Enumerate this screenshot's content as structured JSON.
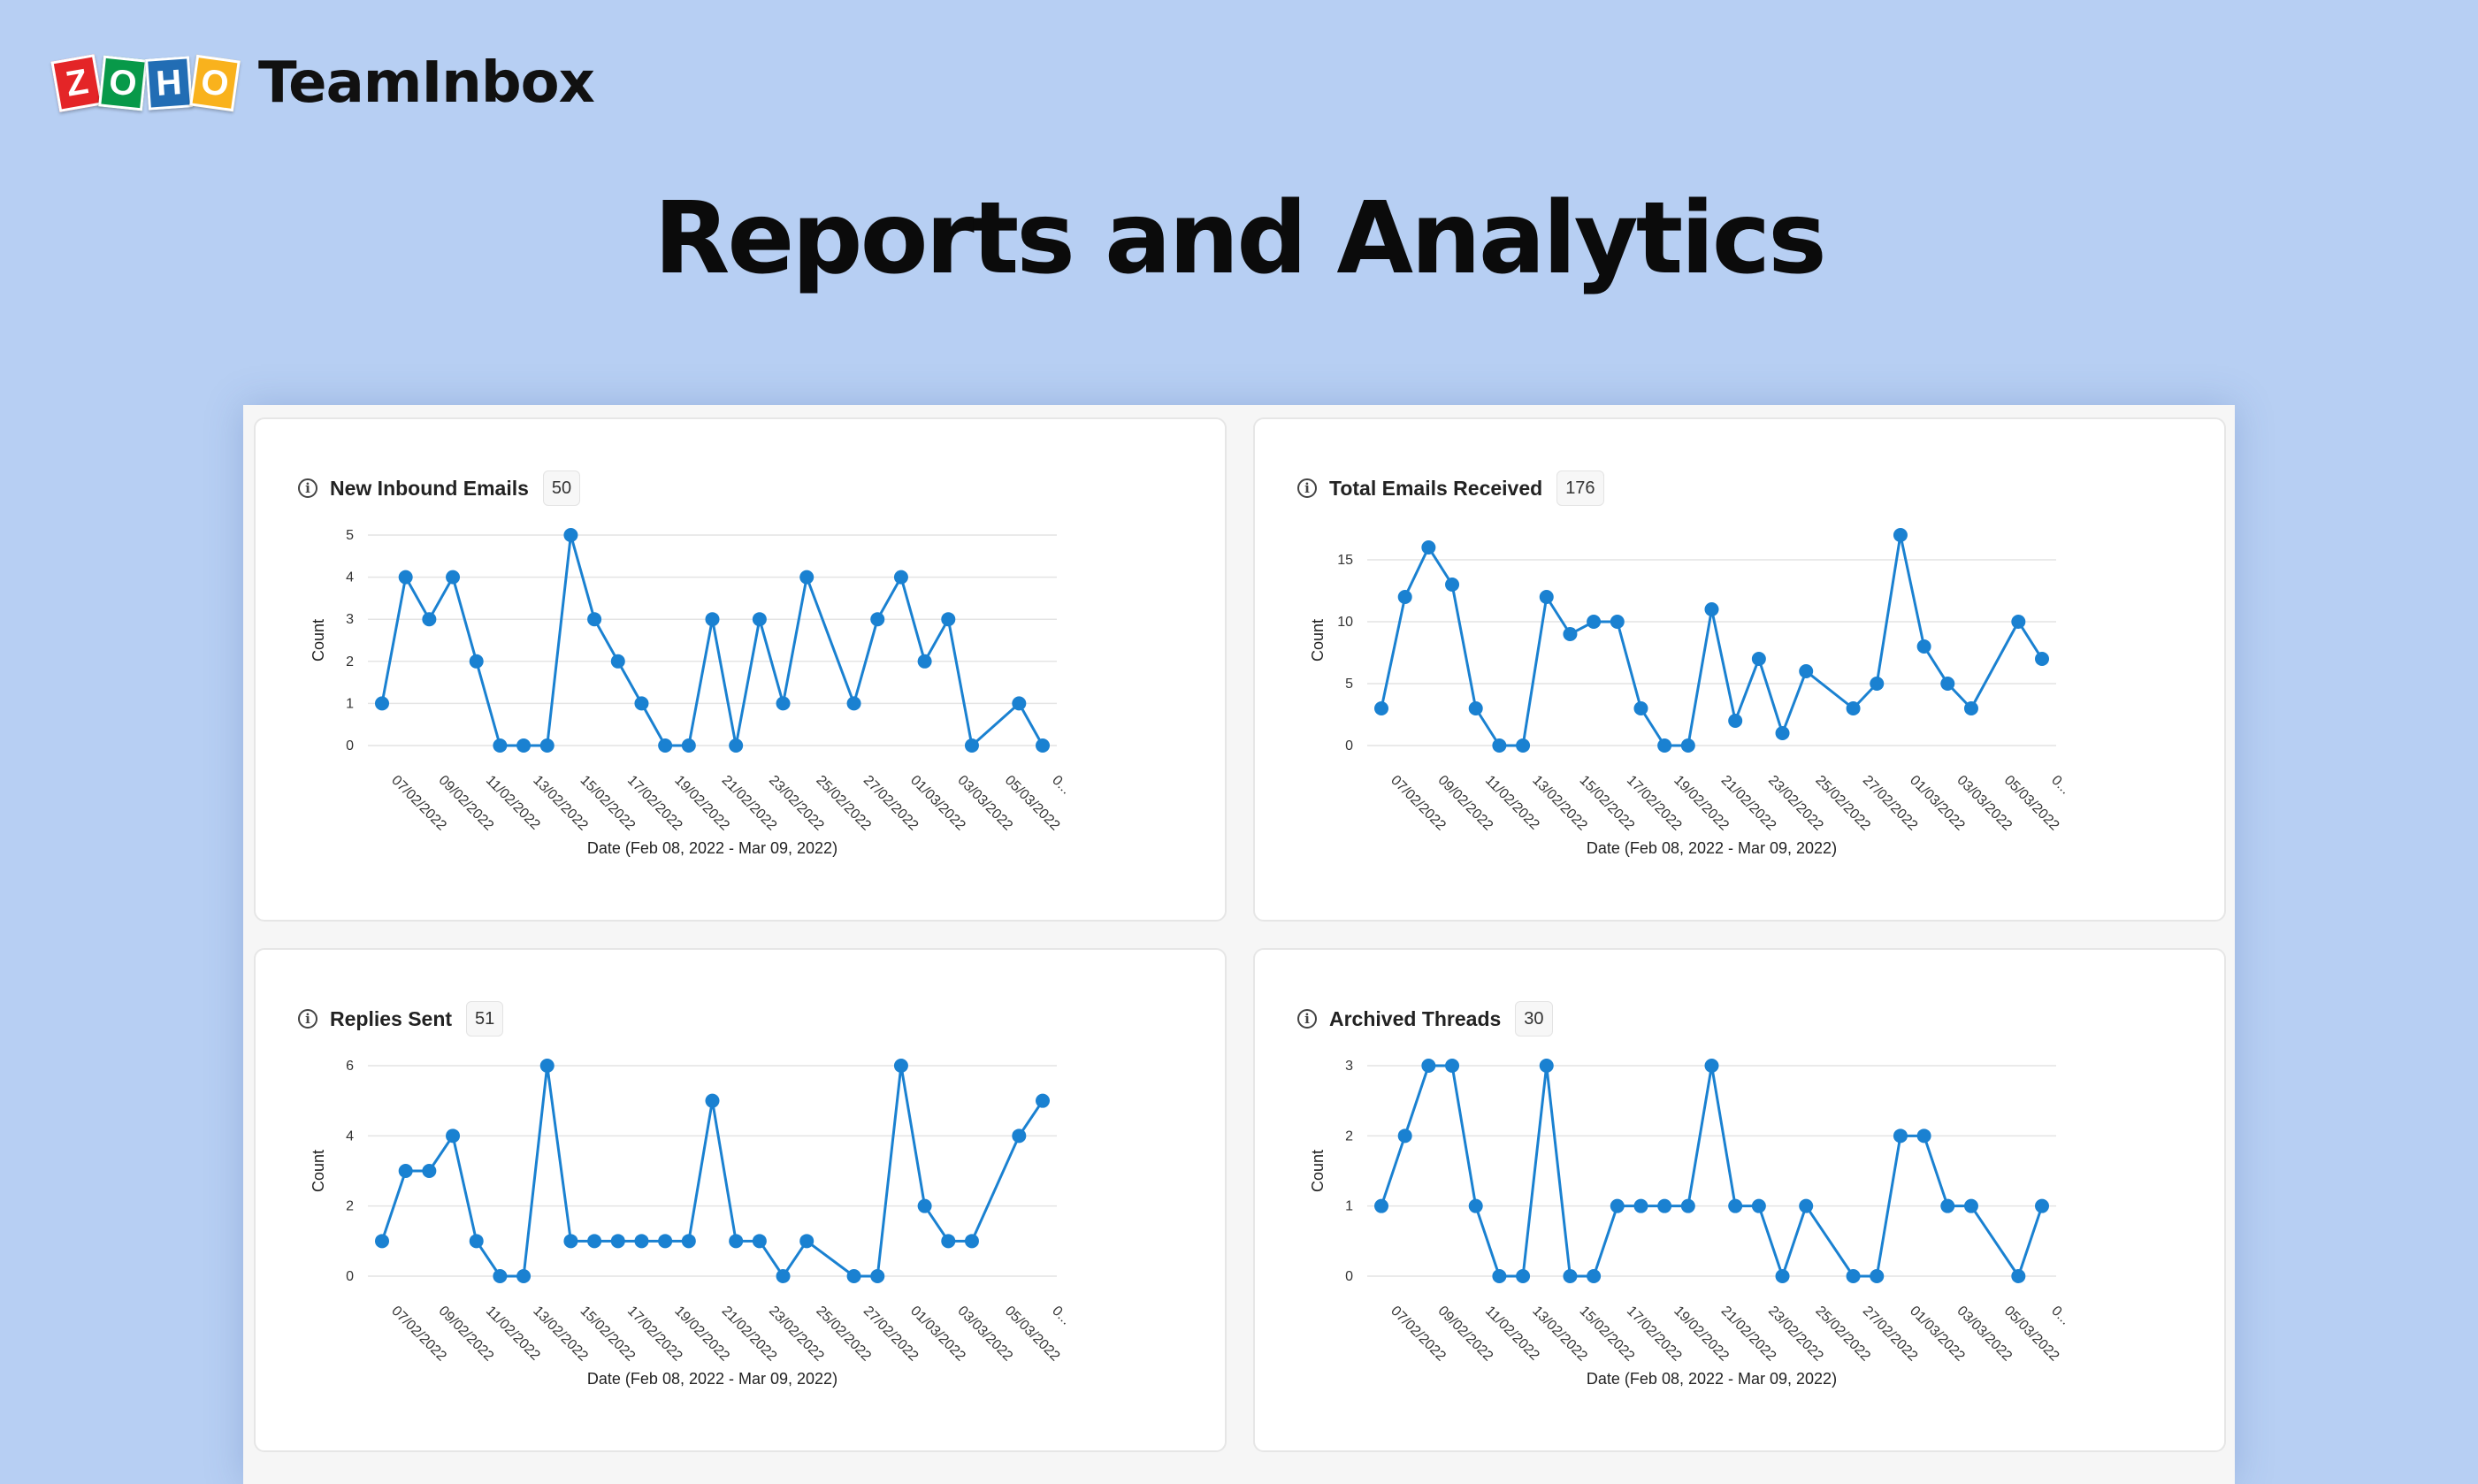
{
  "brand": {
    "logo_letters": [
      "Z",
      "O",
      "H",
      "O"
    ],
    "logo_colors": [
      "#e42527",
      "#089949",
      "#226db4",
      "#f9b21d"
    ],
    "product": "TeamInbox"
  },
  "page_title": "Reports and Analytics",
  "colors": {
    "series": "#1a81d1",
    "grid": "#e4e4e4",
    "background": "#b7cff3"
  },
  "chart_data": [
    {
      "type": "line",
      "title": "New Inbound Emails",
      "total": "50",
      "xlabel": "Date (Feb 08, 2022 - Mar 09, 2022)",
      "ylabel": "Count",
      "ylim": [
        0,
        5
      ],
      "yticks": [
        "0",
        "1",
        "2",
        "3",
        "4",
        "5"
      ],
      "x_tick_labels": [
        "07/02/2022",
        "09/02/2022",
        "11/02/2022",
        "13/02/2022",
        "15/02/2022",
        "17/02/2022",
        "19/02/2022",
        "21/02/2022",
        "23/02/2022",
        "25/02/2022",
        "27/02/2022",
        "01/03/2022",
        "03/03/2022",
        "05/03/2022",
        "0..."
      ],
      "values": [
        1,
        4,
        3,
        4,
        2,
        0,
        0,
        0,
        5,
        3,
        2,
        1,
        0,
        0,
        3,
        0,
        3,
        1,
        4,
        null,
        1,
        3,
        4,
        2,
        3,
        0,
        null,
        1,
        0
      ]
    },
    {
      "type": "line",
      "title": "Total Emails Received",
      "total": "176",
      "xlabel": "Date (Feb 08, 2022 - Mar 09, 2022)",
      "ylabel": "Count",
      "ylim": [
        0,
        17
      ],
      "yticks": [
        "0",
        "5",
        "10",
        "15"
      ],
      "x_tick_labels": [
        "07/02/2022",
        "09/02/2022",
        "11/02/2022",
        "13/02/2022",
        "15/02/2022",
        "17/02/2022",
        "19/02/2022",
        "21/02/2022",
        "23/02/2022",
        "25/02/2022",
        "27/02/2022",
        "01/03/2022",
        "03/03/2022",
        "05/03/2022",
        "0..."
      ],
      "values": [
        3,
        12,
        16,
        13,
        3,
        0,
        0,
        12,
        9,
        10,
        10,
        3,
        0,
        0,
        11,
        2,
        7,
        1,
        6,
        null,
        3,
        5,
        17,
        8,
        5,
        3,
        null,
        10,
        7
      ]
    },
    {
      "type": "line",
      "title": "Replies Sent",
      "total": "51",
      "xlabel": "Date (Feb 08, 2022 - Mar 09, 2022)",
      "ylabel": "Count",
      "ylim": [
        0,
        6
      ],
      "yticks": [
        "0",
        "2",
        "4",
        "6"
      ],
      "x_tick_labels": [
        "07/02/2022",
        "09/02/2022",
        "11/02/2022",
        "13/02/2022",
        "15/02/2022",
        "17/02/2022",
        "19/02/2022",
        "21/02/2022",
        "23/02/2022",
        "25/02/2022",
        "27/02/2022",
        "01/03/2022",
        "03/03/2022",
        "05/03/2022",
        "0..."
      ],
      "values": [
        1,
        3,
        3,
        4,
        1,
        0,
        0,
        6,
        1,
        1,
        1,
        1,
        1,
        1,
        5,
        1,
        1,
        0,
        1,
        null,
        0,
        0,
        6,
        2,
        1,
        1,
        null,
        4,
        5
      ]
    },
    {
      "type": "line",
      "title": "Archived Threads",
      "total": "30",
      "xlabel": "Date (Feb 08, 2022 - Mar 09, 2022)",
      "ylabel": "Count",
      "ylim": [
        0,
        3
      ],
      "yticks": [
        "0",
        "1",
        "2",
        "3"
      ],
      "x_tick_labels": [
        "07/02/2022",
        "09/02/2022",
        "11/02/2022",
        "13/02/2022",
        "15/02/2022",
        "17/02/2022",
        "19/02/2022",
        "21/02/2022",
        "23/02/2022",
        "25/02/2022",
        "27/02/2022",
        "01/03/2022",
        "03/03/2022",
        "05/03/2022",
        "0..."
      ],
      "values": [
        1,
        2,
        3,
        3,
        1,
        0,
        0,
        3,
        0,
        0,
        1,
        1,
        1,
        1,
        3,
        1,
        1,
        0,
        1,
        null,
        0,
        0,
        2,
        2,
        1,
        1,
        null,
        0,
        1
      ]
    }
  ]
}
